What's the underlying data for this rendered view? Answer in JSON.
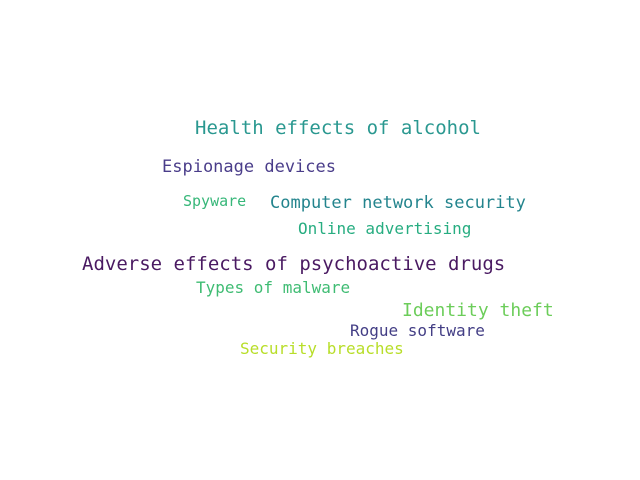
{
  "words": [
    {
      "text": "Health effects of alcohol",
      "color": "#2a9890"
    },
    {
      "text": "Espionage devices",
      "color": "#4a3d8a"
    },
    {
      "text": "Spyware",
      "color": "#37b779"
    },
    {
      "text": "Computer network security",
      "color": "#23848d"
    },
    {
      "text": "Online advertising",
      "color": "#27ad81"
    },
    {
      "text": "Adverse effects of psychoactive drugs",
      "color": "#4a1a62"
    },
    {
      "text": "Types of malware",
      "color": "#3fbc73"
    },
    {
      "text": "Identity theft",
      "color": "#6ccd5a"
    },
    {
      "text": "Rogue software",
      "color": "#433e85"
    },
    {
      "text": "Security breaches",
      "color": "#b8de29"
    }
  ]
}
